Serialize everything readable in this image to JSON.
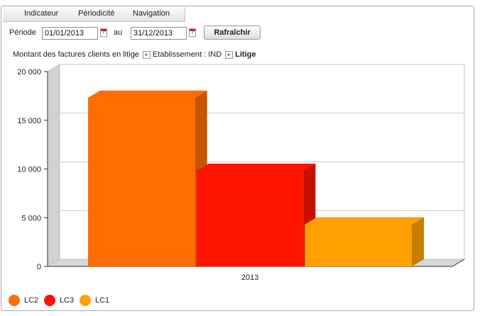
{
  "menu": {
    "items": [
      "Indicateur",
      "Périodicité",
      "Navigation"
    ]
  },
  "period": {
    "label": "Période",
    "start": "01/01/2013",
    "separator": "au",
    "end": "31/12/2013",
    "refresh_label": "Rafraîchir"
  },
  "breadcrumb": {
    "items": [
      "Montant des factures clients en litige",
      "Etablissement : IND",
      "Litige"
    ]
  },
  "colors": {
    "LC2": "#ff6c00",
    "LC3": "#ff1400",
    "LC1": "#ffa000"
  },
  "chart_data": {
    "type": "bar",
    "categories": [
      "2013"
    ],
    "series": [
      {
        "name": "LC2",
        "values": [
          17300
        ]
      },
      {
        "name": "LC3",
        "values": [
          9800
        ]
      },
      {
        "name": "LC1",
        "values": [
          4300
        ]
      }
    ],
    "ylim": [
      0,
      20000
    ],
    "yticks": [
      "0",
      "5 000",
      "10 000",
      "15 000",
      "20 000"
    ],
    "ytick_values": [
      0,
      5000,
      10000,
      15000,
      20000
    ],
    "grid": true,
    "legend": "bottom-left",
    "style": "3d"
  }
}
